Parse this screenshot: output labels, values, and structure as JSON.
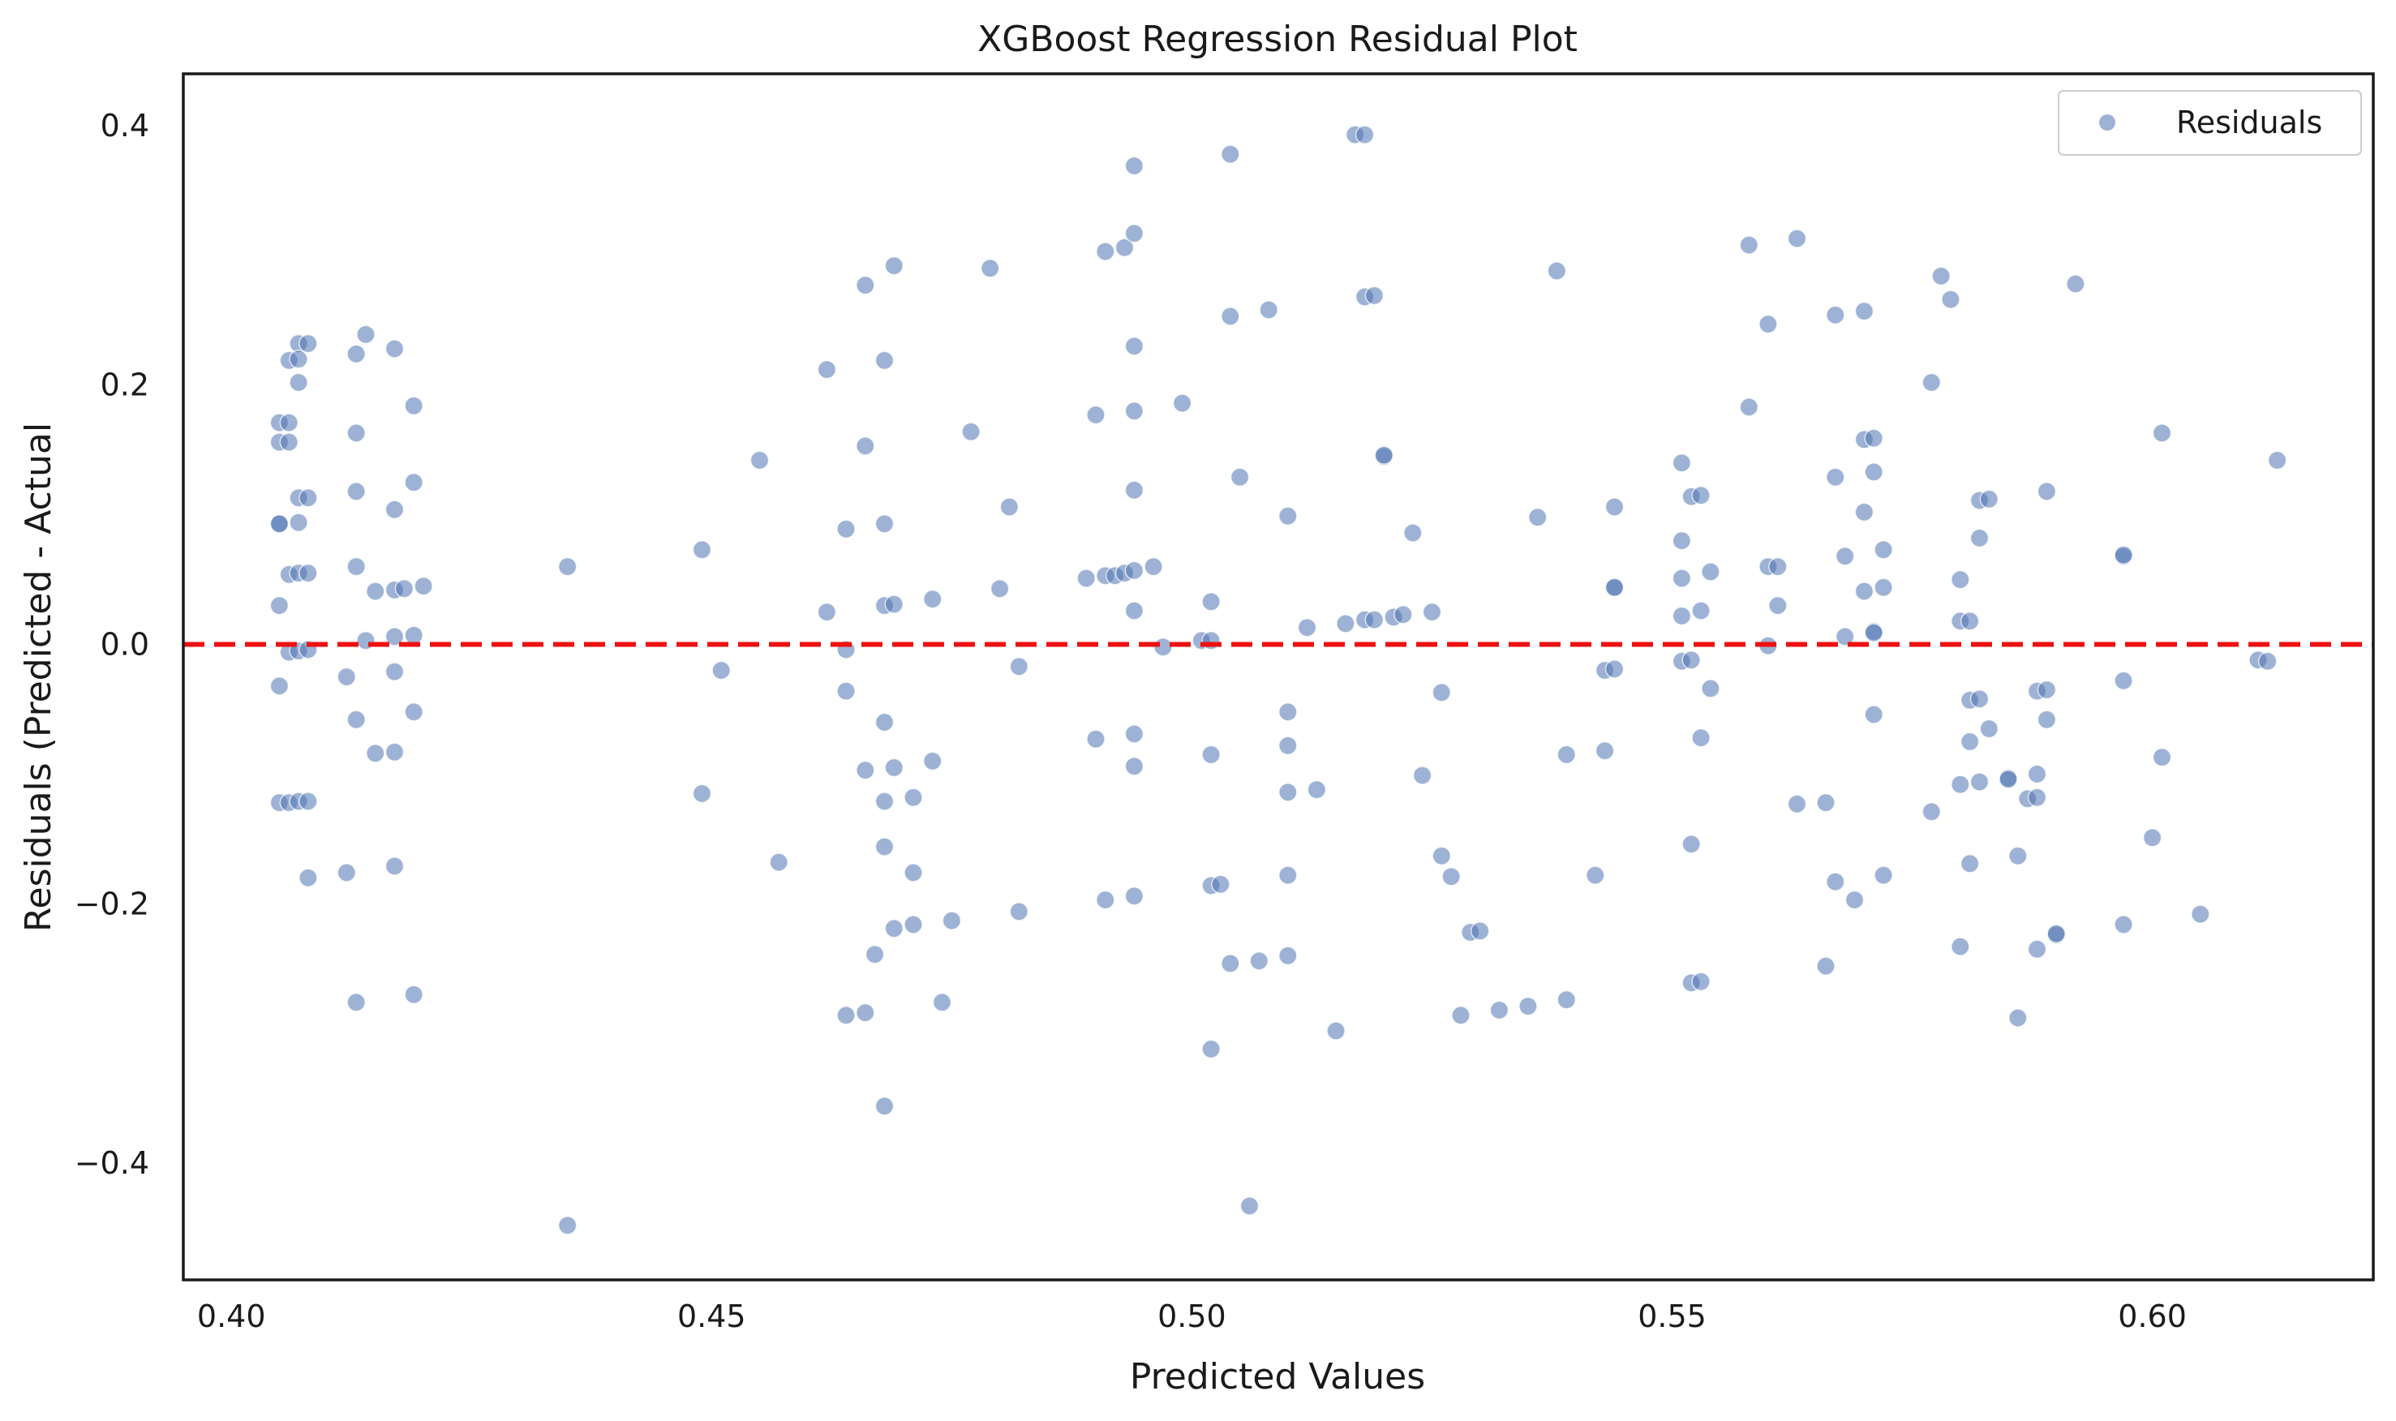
{
  "chart_data": {
    "type": "scatter",
    "title": "XGBoost Regression Residual Plot",
    "xlabel": "Predicted Values",
    "ylabel": "Residuals (Predicted - Actual",
    "xlim": [
      0.395,
      0.623
    ],
    "ylim": [
      -0.49,
      0.44
    ],
    "xticks": [
      0.4,
      0.45,
      0.5,
      0.55,
      0.6
    ],
    "xtick_labels": [
      "0.40",
      "0.45",
      "0.50",
      "0.55",
      "0.60"
    ],
    "yticks": [
      -0.4,
      -0.2,
      0.0,
      0.2,
      0.4
    ],
    "ytick_labels": [
      "−0.4",
      "−0.2",
      "0.0",
      "0.2",
      "0.4"
    ],
    "grid": false,
    "legend": "top-right",
    "reference_line": {
      "y": 0.0,
      "style": "dashed",
      "color": "#ee1111"
    },
    "point_color": "#4c72b0",
    "point_alpha": 0.55,
    "series": [
      {
        "name": "Residuals",
        "points": [
          [
            0.405,
            0.171
          ],
          [
            0.405,
            0.156
          ],
          [
            0.406,
            0.171
          ],
          [
            0.406,
            0.156
          ],
          [
            0.406,
            0.219
          ],
          [
            0.407,
            0.232
          ],
          [
            0.408,
            0.232
          ],
          [
            0.407,
            0.22
          ],
          [
            0.407,
            0.202
          ],
          [
            0.405,
            0.093
          ],
          [
            0.405,
            0.093
          ],
          [
            0.407,
            0.113
          ],
          [
            0.408,
            0.113
          ],
          [
            0.407,
            0.094
          ],
          [
            0.406,
            0.054
          ],
          [
            0.407,
            0.055
          ],
          [
            0.408,
            0.055
          ],
          [
            0.405,
            0.03
          ],
          [
            0.405,
            -0.032
          ],
          [
            0.406,
            -0.006
          ],
          [
            0.407,
            -0.005
          ],
          [
            0.408,
            -0.004
          ],
          [
            0.405,
            -0.122
          ],
          [
            0.406,
            -0.122
          ],
          [
            0.407,
            -0.121
          ],
          [
            0.408,
            -0.121
          ],
          [
            0.408,
            -0.18
          ],
          [
            0.413,
            0.224
          ],
          [
            0.414,
            0.239
          ],
          [
            0.417,
            0.228
          ],
          [
            0.413,
            0.163
          ],
          [
            0.413,
            0.118
          ],
          [
            0.417,
            0.104
          ],
          [
            0.413,
            0.06
          ],
          [
            0.415,
            0.041
          ],
          [
            0.417,
            0.042
          ],
          [
            0.418,
            0.043
          ],
          [
            0.419,
            0.184
          ],
          [
            0.419,
            0.125
          ],
          [
            0.42,
            0.045
          ],
          [
            0.414,
            0.003
          ],
          [
            0.417,
            0.006
          ],
          [
            0.419,
            0.007
          ],
          [
            0.412,
            -0.025
          ],
          [
            0.417,
            -0.021
          ],
          [
            0.419,
            -0.052
          ],
          [
            0.413,
            -0.058
          ],
          [
            0.415,
            -0.084
          ],
          [
            0.417,
            -0.083
          ],
          [
            0.412,
            -0.176
          ],
          [
            0.417,
            -0.171
          ],
          [
            0.413,
            -0.276
          ],
          [
            0.419,
            -0.27
          ],
          [
            0.435,
            0.06
          ],
          [
            0.435,
            -0.448
          ],
          [
            0.449,
            0.073
          ],
          [
            0.449,
            -0.115
          ],
          [
            0.451,
            -0.02
          ],
          [
            0.455,
            0.142
          ],
          [
            0.457,
            -0.168
          ],
          [
            0.462,
            0.212
          ],
          [
            0.462,
            0.025
          ],
          [
            0.464,
            0.089
          ],
          [
            0.464,
            -0.004
          ],
          [
            0.464,
            -0.036
          ],
          [
            0.464,
            -0.286
          ],
          [
            0.466,
            0.277
          ],
          [
            0.466,
            0.153
          ],
          [
            0.466,
            -0.097
          ],
          [
            0.466,
            -0.284
          ],
          [
            0.467,
            -0.239
          ],
          [
            0.468,
            0.219
          ],
          [
            0.468,
            0.093
          ],
          [
            0.468,
            0.03
          ],
          [
            0.469,
            0.031
          ],
          [
            0.468,
            -0.06
          ],
          [
            0.469,
            -0.095
          ],
          [
            0.468,
            -0.121
          ],
          [
            0.468,
            -0.156
          ],
          [
            0.469,
            -0.219
          ],
          [
            0.468,
            -0.356
          ],
          [
            0.469,
            0.292
          ],
          [
            0.471,
            -0.176
          ],
          [
            0.471,
            -0.118
          ],
          [
            0.471,
            -0.216
          ],
          [
            0.473,
            0.035
          ],
          [
            0.473,
            -0.09
          ],
          [
            0.474,
            -0.276
          ],
          [
            0.475,
            -0.213
          ],
          [
            0.477,
            0.164
          ],
          [
            0.479,
            0.29
          ],
          [
            0.48,
            0.043
          ],
          [
            0.481,
            0.106
          ],
          [
            0.482,
            -0.017
          ],
          [
            0.482,
            -0.206
          ],
          [
            0.489,
            0.051
          ],
          [
            0.49,
            0.177
          ],
          [
            0.49,
            -0.073
          ],
          [
            0.491,
            0.053
          ],
          [
            0.491,
            0.303
          ],
          [
            0.491,
            -0.197
          ],
          [
            0.492,
            0.053
          ],
          [
            0.493,
            0.055
          ],
          [
            0.493,
            0.306
          ],
          [
            0.494,
            0.369
          ],
          [
            0.494,
            0.317
          ],
          [
            0.494,
            0.23
          ],
          [
            0.494,
            0.18
          ],
          [
            0.494,
            0.119
          ],
          [
            0.494,
            0.057
          ],
          [
            0.494,
            0.026
          ],
          [
            0.494,
            -0.069
          ],
          [
            0.494,
            -0.094
          ],
          [
            0.494,
            -0.194
          ],
          [
            0.496,
            0.06
          ],
          [
            0.497,
            -0.002
          ],
          [
            0.499,
            0.186
          ],
          [
            0.501,
            0.003
          ],
          [
            0.502,
            0.003
          ],
          [
            0.502,
            0.033
          ],
          [
            0.502,
            -0.085
          ],
          [
            0.502,
            -0.186
          ],
          [
            0.503,
            -0.185
          ],
          [
            0.502,
            -0.312
          ],
          [
            0.504,
            0.378
          ],
          [
            0.504,
            0.253
          ],
          [
            0.505,
            0.129
          ],
          [
            0.504,
            -0.246
          ],
          [
            0.506,
            -0.433
          ],
          [
            0.507,
            -0.244
          ],
          [
            0.508,
            0.258
          ],
          [
            0.51,
            0.099
          ],
          [
            0.51,
            -0.052
          ],
          [
            0.51,
            -0.078
          ],
          [
            0.51,
            -0.114
          ],
          [
            0.51,
            -0.178
          ],
          [
            0.51,
            -0.24
          ],
          [
            0.512,
            0.013
          ],
          [
            0.513,
            -0.112
          ],
          [
            0.515,
            -0.298
          ],
          [
            0.516,
            0.016
          ],
          [
            0.517,
            0.393
          ],
          [
            0.518,
            0.393
          ],
          [
            0.518,
            0.268
          ],
          [
            0.519,
            0.269
          ],
          [
            0.518,
            0.019
          ],
          [
            0.519,
            0.019
          ],
          [
            0.52,
            0.145
          ],
          [
            0.52,
            0.146
          ],
          [
            0.521,
            0.021
          ],
          [
            0.522,
            0.023
          ],
          [
            0.523,
            0.086
          ],
          [
            0.524,
            -0.101
          ],
          [
            0.525,
            0.025
          ],
          [
            0.526,
            -0.163
          ],
          [
            0.526,
            -0.037
          ],
          [
            0.527,
            -0.179
          ],
          [
            0.528,
            -0.286
          ],
          [
            0.529,
            -0.222
          ],
          [
            0.53,
            -0.221
          ],
          [
            0.532,
            -0.282
          ],
          [
            0.535,
            -0.279
          ],
          [
            0.536,
            0.098
          ],
          [
            0.538,
            0.288
          ],
          [
            0.539,
            -0.085
          ],
          [
            0.539,
            -0.274
          ],
          [
            0.542,
            -0.178
          ],
          [
            0.543,
            -0.02
          ],
          [
            0.543,
            -0.082
          ],
          [
            0.544,
            -0.019
          ],
          [
            0.544,
            0.044
          ],
          [
            0.544,
            0.044
          ],
          [
            0.544,
            0.106
          ],
          [
            0.551,
            0.14
          ],
          [
            0.551,
            0.08
          ],
          [
            0.551,
            0.051
          ],
          [
            0.551,
            0.022
          ],
          [
            0.551,
            -0.013
          ],
          [
            0.552,
            -0.012
          ],
          [
            0.552,
            -0.154
          ],
          [
            0.552,
            0.114
          ],
          [
            0.553,
            0.115
          ],
          [
            0.552,
            -0.261
          ],
          [
            0.553,
            -0.26
          ],
          [
            0.553,
            0.026
          ],
          [
            0.553,
            -0.072
          ],
          [
            0.554,
            0.056
          ],
          [
            0.554,
            -0.034
          ],
          [
            0.558,
            0.308
          ],
          [
            0.558,
            0.183
          ],
          [
            0.56,
            0.247
          ],
          [
            0.56,
            0.06
          ],
          [
            0.561,
            0.06
          ],
          [
            0.56,
            -0.001
          ],
          [
            0.561,
            0.03
          ],
          [
            0.563,
            0.313
          ],
          [
            0.563,
            -0.123
          ],
          [
            0.566,
            -0.122
          ],
          [
            0.566,
            -0.248
          ],
          [
            0.567,
            0.254
          ],
          [
            0.567,
            0.129
          ],
          [
            0.567,
            -0.183
          ],
          [
            0.568,
            0.068
          ],
          [
            0.568,
            0.006
          ],
          [
            0.569,
            -0.197
          ],
          [
            0.57,
            0.257
          ],
          [
            0.57,
            0.158
          ],
          [
            0.57,
            0.102
          ],
          [
            0.57,
            0.041
          ],
          [
            0.571,
            0.159
          ],
          [
            0.571,
            0.133
          ],
          [
            0.571,
            0.01
          ],
          [
            0.571,
            0.009
          ],
          [
            0.571,
            -0.054
          ],
          [
            0.572,
            -0.178
          ],
          [
            0.572,
            0.044
          ],
          [
            0.572,
            0.073
          ],
          [
            0.577,
            0.202
          ],
          [
            0.577,
            -0.129
          ],
          [
            0.578,
            0.284
          ],
          [
            0.579,
            0.266
          ],
          [
            0.58,
            0.05
          ],
          [
            0.58,
            0.018
          ],
          [
            0.581,
            0.018
          ],
          [
            0.58,
            -0.108
          ],
          [
            0.58,
            -0.233
          ],
          [
            0.581,
            -0.043
          ],
          [
            0.581,
            -0.075
          ],
          [
            0.581,
            -0.169
          ],
          [
            0.582,
            -0.042
          ],
          [
            0.582,
            0.111
          ],
          [
            0.582,
            -0.106
          ],
          [
            0.582,
            0.082
          ],
          [
            0.583,
            -0.065
          ],
          [
            0.583,
            0.112
          ],
          [
            0.585,
            -0.103
          ],
          [
            0.585,
            -0.104
          ],
          [
            0.586,
            -0.163
          ],
          [
            0.586,
            -0.288
          ],
          [
            0.587,
            -0.119
          ],
          [
            0.588,
            -0.036
          ],
          [
            0.588,
            -0.1
          ],
          [
            0.588,
            -0.235
          ],
          [
            0.588,
            -0.118
          ],
          [
            0.589,
            0.118
          ],
          [
            0.589,
            -0.035
          ],
          [
            0.589,
            -0.058
          ],
          [
            0.59,
            -0.224
          ],
          [
            0.59,
            -0.223
          ],
          [
            0.592,
            0.278
          ],
          [
            0.597,
            0.068
          ],
          [
            0.597,
            0.069
          ],
          [
            0.597,
            -0.028
          ],
          [
            0.597,
            -0.216
          ],
          [
            0.6,
            -0.149
          ],
          [
            0.601,
            0.163
          ],
          [
            0.601,
            -0.087
          ],
          [
            0.605,
            -0.208
          ],
          [
            0.611,
            -0.012
          ],
          [
            0.612,
            -0.013
          ],
          [
            0.613,
            0.142
          ]
        ]
      }
    ]
  }
}
